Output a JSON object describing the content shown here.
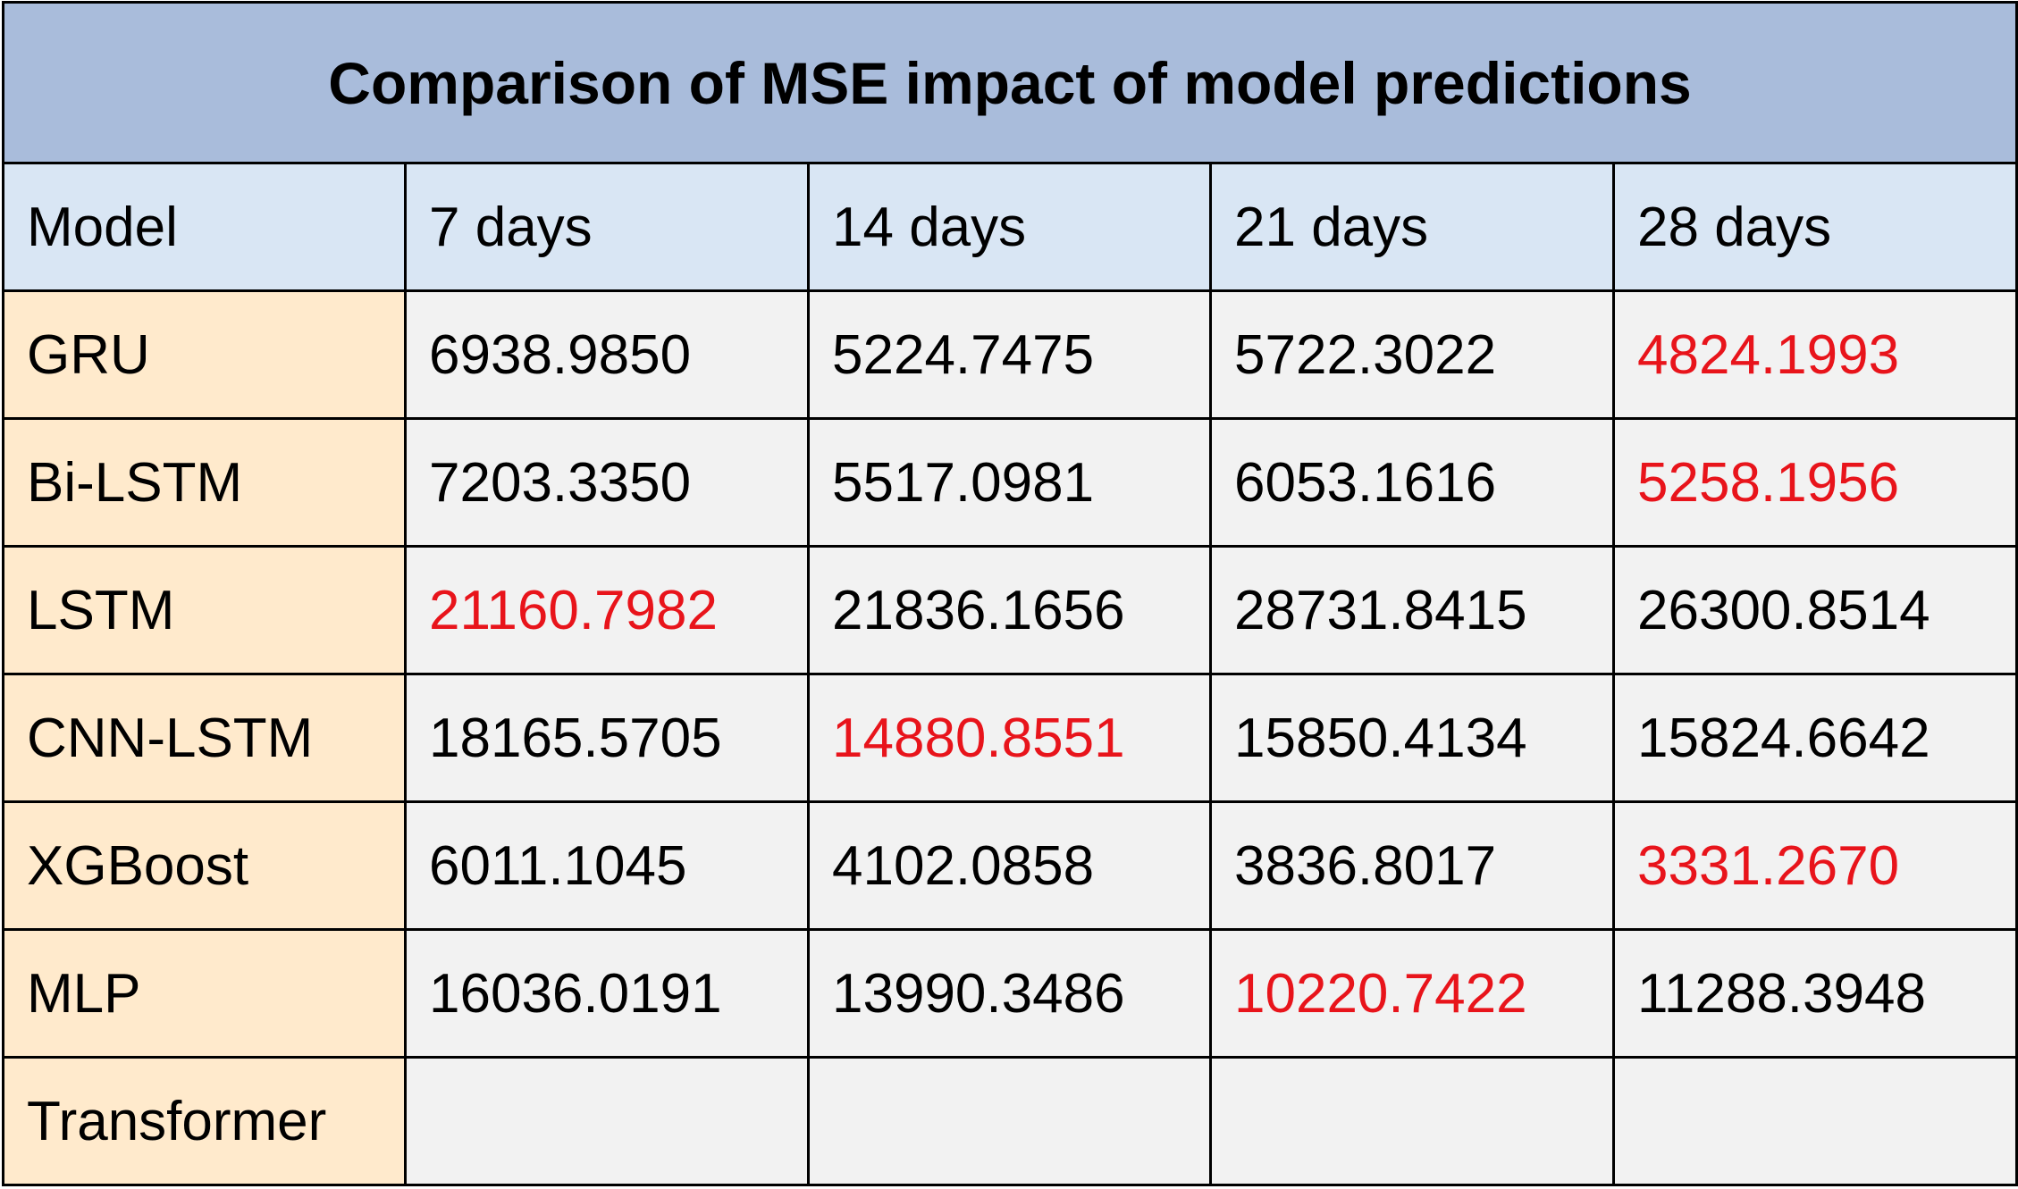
{
  "colors": {
    "title_bg": "#A9BCDB",
    "header_bg": "#D9E6F4",
    "model_col_bg": "#FFEACC",
    "cell_bg": "#F2F2F2",
    "text": "#000000",
    "highlight": "#E8141B",
    "border": "#000000"
  },
  "chart_data": {
    "type": "table",
    "title": "Comparison of MSE impact of model predictions",
    "columns": [
      "Model",
      "7 days",
      "14 days",
      "21 days",
      "28 days"
    ],
    "rows": [
      {
        "model": "GRU",
        "values": [
          "6938.9850",
          "5224.7475",
          "5722.3022",
          "4824.1993"
        ],
        "highlight": [
          false,
          false,
          false,
          true
        ]
      },
      {
        "model": "Bi-LSTM",
        "values": [
          "7203.3350",
          "5517.0981",
          "6053.1616",
          "5258.1956"
        ],
        "highlight": [
          false,
          false,
          false,
          true
        ]
      },
      {
        "model": "LSTM",
        "values": [
          "21160.7982",
          "21836.1656",
          "28731.8415",
          "26300.8514"
        ],
        "highlight": [
          true,
          false,
          false,
          false
        ]
      },
      {
        "model": "CNN-LSTM",
        "values": [
          "18165.5705",
          "14880.8551",
          "15850.4134",
          "15824.6642"
        ],
        "highlight": [
          false,
          true,
          false,
          false
        ]
      },
      {
        "model": "XGBoost",
        "values": [
          "6011.1045",
          "4102.0858",
          "3836.8017",
          "3331.2670"
        ],
        "highlight": [
          false,
          false,
          false,
          true
        ]
      },
      {
        "model": "MLP",
        "values": [
          "16036.0191",
          "13990.3486",
          "10220.7422",
          "11288.3948"
        ],
        "highlight": [
          false,
          false,
          true,
          false
        ]
      },
      {
        "model": "Transformer",
        "values": [
          "",
          "",
          "",
          ""
        ],
        "highlight": [
          false,
          false,
          false,
          false
        ]
      }
    ]
  }
}
